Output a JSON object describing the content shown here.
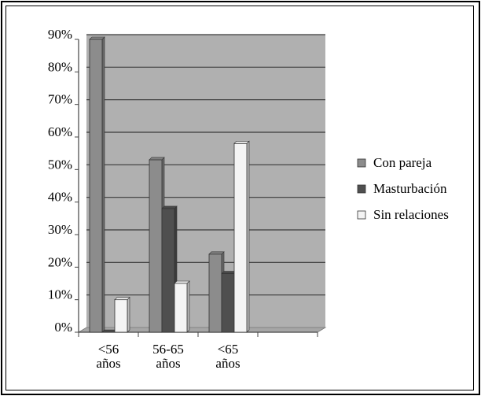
{
  "chart_data": {
    "type": "bar",
    "categories": [
      [
        "<56",
        "años"
      ],
      [
        "56-65",
        "años"
      ],
      [
        "<65",
        "años"
      ]
    ],
    "series": [
      {
        "name": "Con pareja",
        "values": [
          90,
          53,
          24
        ],
        "color": "#8c8c8c"
      },
      {
        "name": "Masturbación",
        "values": [
          0,
          38,
          18
        ],
        "color": "#4f4f4f"
      },
      {
        "name": "Sin relaciones",
        "values": [
          10,
          15,
          58
        ],
        "color": "#f4f4f4"
      }
    ],
    "ylim": [
      0,
      90
    ],
    "yticks": [
      "0%",
      "10%",
      "20%",
      "30%",
      "40%",
      "50%",
      "60%",
      "70%",
      "80%",
      "90%"
    ],
    "grid": true,
    "legend_position": "right",
    "plot_background": "#b0b0b0"
  }
}
